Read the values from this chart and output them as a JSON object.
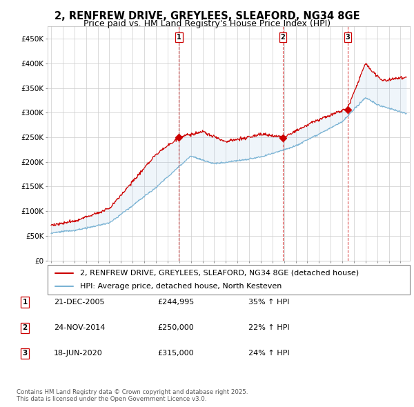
{
  "title": "2, RENFREW DRIVE, GREYLEES, SLEAFORD, NG34 8GE",
  "subtitle": "Price paid vs. HM Land Registry's House Price Index (HPI)",
  "ylim": [
    0,
    475000
  ],
  "yticks": [
    0,
    50000,
    100000,
    150000,
    200000,
    250000,
    300000,
    350000,
    400000,
    450000
  ],
  "ytick_labels": [
    "£0",
    "£50K",
    "£100K",
    "£150K",
    "£200K",
    "£250K",
    "£300K",
    "£350K",
    "£400K",
    "£450K"
  ],
  "hpi_color": "#7ab3d4",
  "price_color": "#cc0000",
  "fill_color": "#ddeeff",
  "vline_color": "#cc0000",
  "background_color": "#ffffff",
  "grid_color": "#cccccc",
  "legend_label_price": "2, RENFREW DRIVE, GREYLEES, SLEAFORD, NG34 8GE (detached house)",
  "legend_label_hpi": "HPI: Average price, detached house, North Kesteven",
  "transactions": [
    {
      "num": 1,
      "date": "21-DEC-2005",
      "price": 244995,
      "pct": "35%",
      "year": 2005.97
    },
    {
      "num": 2,
      "date": "24-NOV-2014",
      "price": 250000,
      "pct": "22%",
      "year": 2014.9
    },
    {
      "num": 3,
      "date": "18-JUN-2020",
      "price": 315000,
      "pct": "24%",
      "year": 2020.46
    }
  ],
  "footer": "Contains HM Land Registry data © Crown copyright and database right 2025.\nThis data is licensed under the Open Government Licence v3.0.",
  "title_fontsize": 10.5,
  "subtitle_fontsize": 9,
  "tick_fontsize": 7.5,
  "legend_fontsize": 8
}
